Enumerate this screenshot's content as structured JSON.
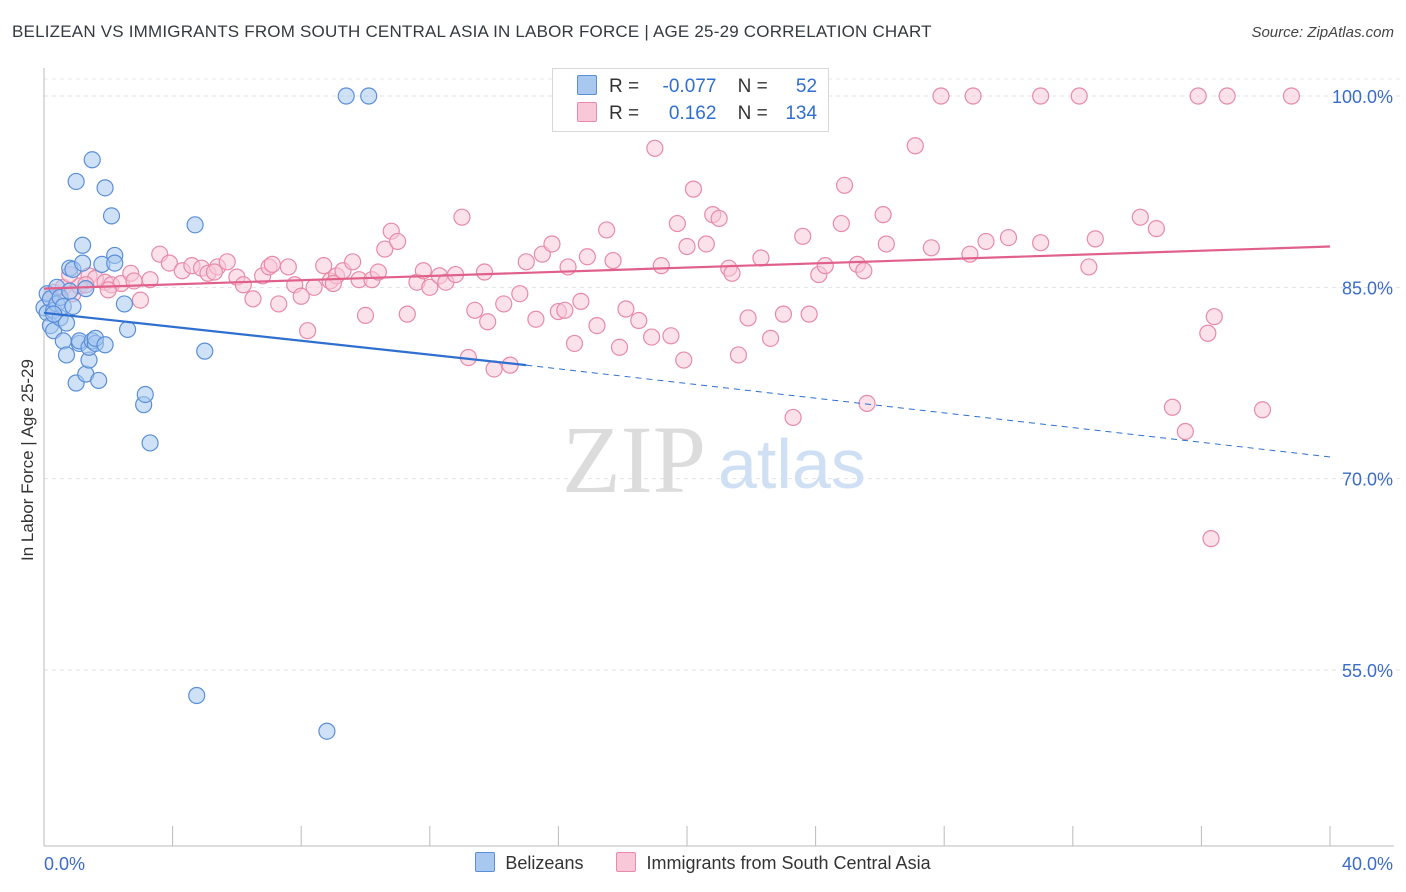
{
  "header": {
    "title": "BELIZEAN VS IMMIGRANTS FROM SOUTH CENTRAL ASIA IN LABOR FORCE | AGE 25-29 CORRELATION CHART",
    "source": "Source: ZipAtlas.com"
  },
  "colors": {
    "blue_fill": "#a8c8f0",
    "blue_stroke": "#5a8fd8",
    "blue_line": "#2f6fd0",
    "pink_fill": "#f8c8d8",
    "pink_stroke": "#e88aa8",
    "pink_line": "#e0608a",
    "axis_label": "#3a6cc8"
  },
  "legend": {
    "rows": [
      {
        "r_label": "R =",
        "r_value": "-0.077",
        "n_label": "N =",
        "n_value": "52"
      },
      {
        "r_label": "R =",
        "r_value": "0.162",
        "n_label": "N =",
        "n_value": "134"
      }
    ]
  },
  "bottom_legend": [
    "Belizeans",
    "Immigrants from South Central Asia"
  ],
  "watermark": {
    "zip": "ZIP",
    "atlas": "atlas"
  },
  "chart_data": {
    "type": "scatter",
    "title": "BELIZEAN VS IMMIGRANTS FROM SOUTH CENTRAL ASIA IN LABOR FORCE | AGE 25-29 CORRELATION CHART",
    "xlabel": "",
    "ylabel": "In Labor Force | Age 25-29",
    "xlim": [
      0,
      40
    ],
    "ylim": [
      40,
      102
    ],
    "x_tick_labels": [
      "0.0%",
      "40.0%"
    ],
    "y_ticks": [
      55,
      70,
      85,
      100
    ],
    "y_tick_labels": [
      "55.0%",
      "70.0%",
      "85.0%",
      "100.0%"
    ],
    "series": [
      {
        "name": "Belizeans",
        "trend": {
          "x0": 0,
          "y0": 83.0,
          "x1": 15,
          "y1": 78.9,
          "dash_x1": 40,
          "dash_y1": 71.7
        },
        "points": [
          [
            0.0,
            83.4
          ],
          [
            0.1,
            83.0
          ],
          [
            0.1,
            84.5
          ],
          [
            0.2,
            82.0
          ],
          [
            0.2,
            84.1
          ],
          [
            0.3,
            83.2
          ],
          [
            0.3,
            81.6
          ],
          [
            0.4,
            83.7
          ],
          [
            0.4,
            85.0
          ],
          [
            0.5,
            82.6
          ],
          [
            0.5,
            84.2
          ],
          [
            0.6,
            83.5
          ],
          [
            0.6,
            80.8
          ],
          [
            0.7,
            82.2
          ],
          [
            0.7,
            79.7
          ],
          [
            0.8,
            86.5
          ],
          [
            0.8,
            84.7
          ],
          [
            0.9,
            86.4
          ],
          [
            0.9,
            83.5
          ],
          [
            1.0,
            77.5
          ],
          [
            1.0,
            93.3
          ],
          [
            1.1,
            80.6
          ],
          [
            1.1,
            80.8
          ],
          [
            1.2,
            86.9
          ],
          [
            1.2,
            88.3
          ],
          [
            1.3,
            78.2
          ],
          [
            1.3,
            84.9
          ],
          [
            1.4,
            79.3
          ],
          [
            1.4,
            80.3
          ],
          [
            1.5,
            80.8
          ],
          [
            1.5,
            95.0
          ],
          [
            1.6,
            80.6
          ],
          [
            1.6,
            81.0
          ],
          [
            1.7,
            77.7
          ],
          [
            1.8,
            86.8
          ],
          [
            1.9,
            92.8
          ],
          [
            1.9,
            80.5
          ],
          [
            2.1,
            90.6
          ],
          [
            2.2,
            87.5
          ],
          [
            2.2,
            86.9
          ],
          [
            2.5,
            83.7
          ],
          [
            2.6,
            81.7
          ],
          [
            3.1,
            75.8
          ],
          [
            3.15,
            76.6
          ],
          [
            3.3,
            72.8
          ],
          [
            4.7,
            89.9
          ],
          [
            5.0,
            80.0
          ],
          [
            4.75,
            53.0
          ],
          [
            8.8,
            50.2
          ],
          [
            9.4,
            100.0
          ],
          [
            10.1,
            100.0
          ],
          [
            0.3,
            82.9
          ]
        ]
      },
      {
        "name": "Immigrants from South Central Asia",
        "trend": {
          "x0": 0,
          "y0": 84.9,
          "x1": 40,
          "y1": 88.2
        },
        "points": [
          [
            0.3,
            84.6
          ],
          [
            0.6,
            85.0
          ],
          [
            0.9,
            84.5
          ],
          [
            1.1,
            85.1
          ],
          [
            1.4,
            85.9
          ],
          [
            1.6,
            85.7
          ],
          [
            1.9,
            85.4
          ],
          [
            2.1,
            85.2
          ],
          [
            2.4,
            85.3
          ],
          [
            2.7,
            86.1
          ],
          [
            2.8,
            85.5
          ],
          [
            3.0,
            84.0
          ],
          [
            3.6,
            87.6
          ],
          [
            3.9,
            86.9
          ],
          [
            4.3,
            86.3
          ],
          [
            4.6,
            86.7
          ],
          [
            4.9,
            86.5
          ],
          [
            5.1,
            86.1
          ],
          [
            5.4,
            86.6
          ],
          [
            5.7,
            87.0
          ],
          [
            6.0,
            85.8
          ],
          [
            6.2,
            85.2
          ],
          [
            6.5,
            84.1
          ],
          [
            6.8,
            85.9
          ],
          [
            7.0,
            86.6
          ],
          [
            7.3,
            83.7
          ],
          [
            7.6,
            86.6
          ],
          [
            7.8,
            85.2
          ],
          [
            8.0,
            84.3
          ],
          [
            8.2,
            81.6
          ],
          [
            8.4,
            85.0
          ],
          [
            8.7,
            86.7
          ],
          [
            8.9,
            85.5
          ],
          [
            9.1,
            85.9
          ],
          [
            9.3,
            86.3
          ],
          [
            9.6,
            87.0
          ],
          [
            9.8,
            85.6
          ],
          [
            10.0,
            82.8
          ],
          [
            10.2,
            85.6
          ],
          [
            10.4,
            86.2
          ],
          [
            10.6,
            88.0
          ],
          [
            10.8,
            89.4
          ],
          [
            11.0,
            88.6
          ],
          [
            11.3,
            82.9
          ],
          [
            11.6,
            85.4
          ],
          [
            11.8,
            86.3
          ],
          [
            12.0,
            85.0
          ],
          [
            12.3,
            85.9
          ],
          [
            12.5,
            85.4
          ],
          [
            12.8,
            86.0
          ],
          [
            13.0,
            90.5
          ],
          [
            13.2,
            79.5
          ],
          [
            13.4,
            83.2
          ],
          [
            13.8,
            82.3
          ],
          [
            14.0,
            78.6
          ],
          [
            14.3,
            83.7
          ],
          [
            14.5,
            78.9
          ],
          [
            14.8,
            84.5
          ],
          [
            15.0,
            87.0
          ],
          [
            15.3,
            82.5
          ],
          [
            15.5,
            87.6
          ],
          [
            15.8,
            88.4
          ],
          [
            16.0,
            83.1
          ],
          [
            16.3,
            86.6
          ],
          [
            16.5,
            80.6
          ],
          [
            16.7,
            83.9
          ],
          [
            16.9,
            87.4
          ],
          [
            17.2,
            82.0
          ],
          [
            17.5,
            89.5
          ],
          [
            17.7,
            87.1
          ],
          [
            17.9,
            80.3
          ],
          [
            18.1,
            83.3
          ],
          [
            18.5,
            82.4
          ],
          [
            18.9,
            81.1
          ],
          [
            19.2,
            86.7
          ],
          [
            19.5,
            81.2
          ],
          [
            19.7,
            90.0
          ],
          [
            19.9,
            79.3
          ],
          [
            20.2,
            92.7
          ],
          [
            20.6,
            88.4
          ],
          [
            20.8,
            90.7
          ],
          [
            21.0,
            90.4
          ],
          [
            21.3,
            86.5
          ],
          [
            21.4,
            86.1
          ],
          [
            21.6,
            79.7
          ],
          [
            21.9,
            82.6
          ],
          [
            22.3,
            87.3
          ],
          [
            22.6,
            81.0
          ],
          [
            23.0,
            82.9
          ],
          [
            23.3,
            74.8
          ],
          [
            23.6,
            89.0
          ],
          [
            23.8,
            82.9
          ],
          [
            24.1,
            86.0
          ],
          [
            24.3,
            86.7
          ],
          [
            24.8,
            90.0
          ],
          [
            24.9,
            93.0
          ],
          [
            25.3,
            86.8
          ],
          [
            25.6,
            75.9
          ],
          [
            26.1,
            90.7
          ],
          [
            26.2,
            88.4
          ],
          [
            27.1,
            96.1
          ],
          [
            27.6,
            88.1
          ],
          [
            28.8,
            87.6
          ],
          [
            29.3,
            88.6
          ],
          [
            30.0,
            88.9
          ],
          [
            31.0,
            88.5
          ],
          [
            32.5,
            86.6
          ],
          [
            32.7,
            88.8
          ],
          [
            34.1,
            90.5
          ],
          [
            34.6,
            89.6
          ],
          [
            35.1,
            75.6
          ],
          [
            35.5,
            73.7
          ],
          [
            36.2,
            81.4
          ],
          [
            36.3,
            65.3
          ],
          [
            36.4,
            82.7
          ],
          [
            37.9,
            75.4
          ],
          [
            19.0,
            95.9
          ],
          [
            27.9,
            100.0
          ],
          [
            32.2,
            100.0
          ],
          [
            35.9,
            100.0
          ],
          [
            36.8,
            100.0
          ],
          [
            38.8,
            100.0
          ],
          [
            31.0,
            100.0
          ],
          [
            23.8,
            100.0
          ],
          [
            21.6,
            100.0
          ],
          [
            28.9,
            100.0
          ],
          [
            0.2,
            84.1
          ],
          [
            0.8,
            86.0
          ],
          [
            1.3,
            85.2
          ],
          [
            2.0,
            84.8
          ],
          [
            3.3,
            85.6
          ],
          [
            5.3,
            86.2
          ],
          [
            7.1,
            86.8
          ],
          [
            9.0,
            85.3
          ],
          [
            13.7,
            86.2
          ],
          [
            16.2,
            83.2
          ],
          [
            20.0,
            88.2
          ],
          [
            25.5,
            86.3
          ]
        ]
      }
    ]
  }
}
